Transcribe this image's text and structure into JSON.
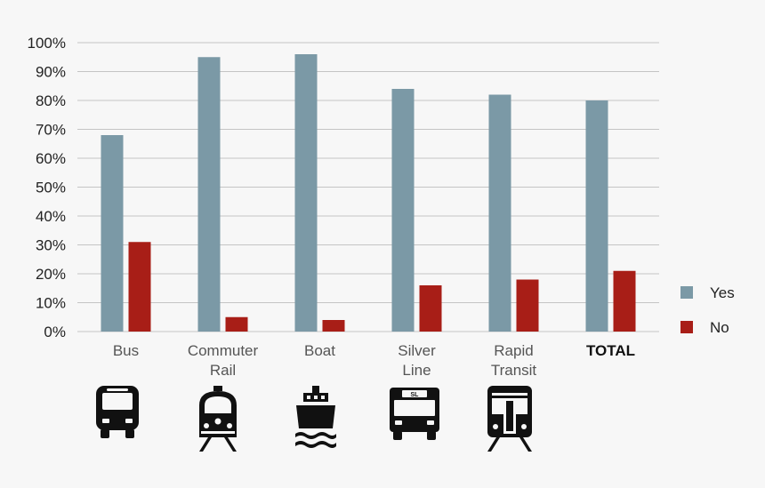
{
  "chart_data": {
    "type": "bar",
    "title": "",
    "xlabel": "",
    "ylabel": "",
    "ylim": [
      0,
      100
    ],
    "y_ticks": [
      "0%",
      "10%",
      "20%",
      "30%",
      "40%",
      "50%",
      "60%",
      "70%",
      "80%",
      "90%",
      "100%"
    ],
    "grid": true,
    "legend_position": "right",
    "categories": [
      {
        "lines": [
          "Bus"
        ],
        "bold": false,
        "icon": "bus-icon"
      },
      {
        "lines": [
          "Commuter",
          "Rail"
        ],
        "bold": false,
        "icon": "commuter-rail-icon"
      },
      {
        "lines": [
          "Boat"
        ],
        "bold": false,
        "icon": "boat-icon"
      },
      {
        "lines": [
          "Silver",
          "Line"
        ],
        "bold": false,
        "icon": "silver-line-bus-icon"
      },
      {
        "lines": [
          "Rapid",
          "Transit"
        ],
        "bold": false,
        "icon": "rapid-transit-icon"
      },
      {
        "lines": [
          "TOTAL"
        ],
        "bold": true,
        "icon": ""
      }
    ],
    "series": [
      {
        "name": "Yes",
        "color": "#7b99a6",
        "values": [
          68,
          95,
          96,
          84,
          82,
          80
        ]
      },
      {
        "name": "No",
        "color": "#a81e17",
        "values": [
          31,
          5,
          4,
          16,
          18,
          21
        ]
      }
    ],
    "silver_line_badge": "SL",
    "colors": {
      "gridline": "#c4c4c4",
      "axis_text": "#222222",
      "category_text": "#555555",
      "icon": "#111111"
    }
  }
}
